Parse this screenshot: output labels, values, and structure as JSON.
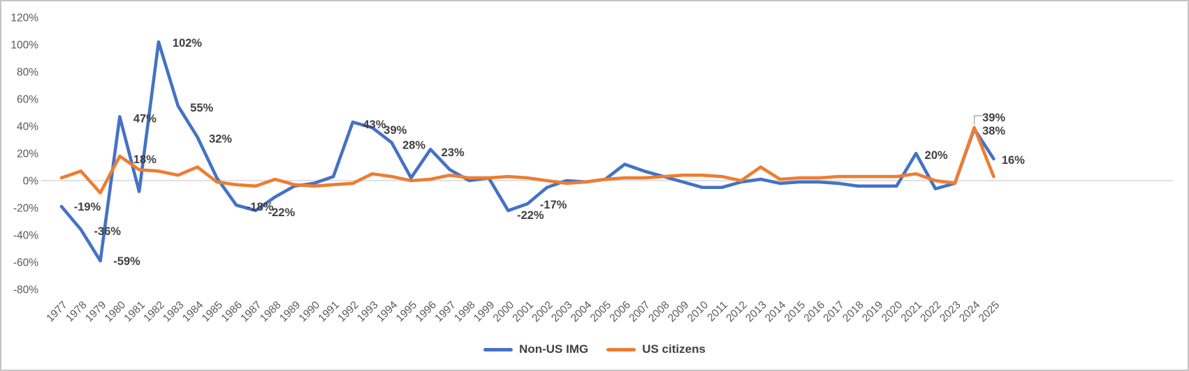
{
  "chart_data": {
    "type": "line",
    "title": "",
    "xlabel": "",
    "ylabel": "",
    "ylim": [
      -80,
      120
    ],
    "grid": "zero-line-only",
    "legend_position": "bottom-center",
    "x": [
      1977,
      1978,
      1979,
      1980,
      1981,
      1982,
      1983,
      1984,
      1985,
      1986,
      1987,
      1988,
      1989,
      1990,
      1991,
      1992,
      1993,
      1994,
      1995,
      1996,
      1997,
      1998,
      1999,
      2000,
      2001,
      2002,
      2003,
      2004,
      2005,
      2006,
      2007,
      2008,
      2009,
      2010,
      2011,
      2012,
      2013,
      2014,
      2015,
      2016,
      2017,
      2018,
      2019,
      2020,
      2021,
      2022,
      2023,
      2024,
      2025
    ],
    "y_ticks": [
      {
        "label": "120%",
        "value": 120
      },
      {
        "label": "100%",
        "value": 100
      },
      {
        "label": "80%",
        "value": 80
      },
      {
        "label": "60%",
        "value": 60
      },
      {
        "label": "40%",
        "value": 40
      },
      {
        "label": "20%",
        "value": 20
      },
      {
        "label": "0%",
        "value": 0
      },
      {
        "label": "-20%",
        "value": -20
      },
      {
        "label": "-40%",
        "value": -40
      },
      {
        "label": "-60%",
        "value": -60
      },
      {
        "label": "-80%",
        "value": -80
      }
    ],
    "series": [
      {
        "name": "Non-US IMG",
        "color": "#4472C4",
        "values": [
          -19,
          -36,
          -59,
          47,
          -8,
          102,
          55,
          32,
          2,
          -18,
          -22,
          -12,
          -4,
          -2,
          3,
          43,
          39,
          28,
          2,
          23,
          8,
          0,
          2,
          -22,
          -17,
          -5,
          0,
          -1,
          1,
          12,
          7,
          3,
          -1,
          -5,
          -5,
          -1,
          1,
          -2,
          -1,
          -1,
          -2,
          -4,
          -4,
          -4,
          20,
          -6,
          -2,
          38,
          16
        ],
        "point_labels": [
          {
            "year": 1977,
            "text": "-19%",
            "dx": 37,
            "dy": 0
          },
          {
            "year": 1978,
            "text": "-36%",
            "dx": 38,
            "dy": 2
          },
          {
            "year": 1979,
            "text": "-59%",
            "dx": 38,
            "dy": 0
          },
          {
            "year": 1980,
            "text": "47%",
            "dx": 36,
            "dy": 2
          },
          {
            "year": 1982,
            "text": "102%",
            "dx": 41,
            "dy": 1
          },
          {
            "year": 1983,
            "text": "55%",
            "dx": 34,
            "dy": 2
          },
          {
            "year": 1984,
            "text": "32%",
            "dx": 33,
            "dy": 2
          },
          {
            "year": 1986,
            "text": "-18%",
            "dx": 34,
            "dy": 2
          },
          {
            "year": 1987,
            "text": "-22%",
            "dx": 37,
            "dy": 2
          },
          {
            "year": 1992,
            "text": "43%",
            "dx": 31,
            "dy": 3
          },
          {
            "year": 1993,
            "text": "39%",
            "dx": 33,
            "dy": 3
          },
          {
            "year": 1994,
            "text": "28%",
            "dx": 32,
            "dy": 3
          },
          {
            "year": 1996,
            "text": "23%",
            "dx": 32,
            "dy": 4
          },
          {
            "year": 2000,
            "text": "-22%",
            "dx": 32,
            "dy": 6
          },
          {
            "year": 2001,
            "text": "-17%",
            "dx": 37,
            "dy": 1
          },
          {
            "year": 2021,
            "text": "20%",
            "dx": 29,
            "dy": 2
          },
          {
            "year": 2024,
            "text": "38%",
            "dx": 28,
            "dy": 2
          },
          {
            "year": 2025,
            "text": "16%",
            "dx": 28,
            "dy": 1
          }
        ]
      },
      {
        "name": "US citizens",
        "color": "#ED7D31",
        "values": [
          2,
          7,
          -9,
          18,
          8,
          7,
          4,
          10,
          -1,
          -3,
          -4,
          1,
          -3,
          -4,
          -3,
          -2,
          5,
          3,
          0,
          1,
          4,
          2,
          2,
          3,
          2,
          0,
          -2,
          -1,
          1,
          2,
          2,
          3,
          4,
          4,
          3,
          0,
          10,
          1,
          2,
          2,
          3,
          3,
          3,
          3,
          5,
          0,
          -2,
          39,
          3
        ],
        "point_labels": [
          {
            "year": 1980,
            "text": "18%",
            "dx": 36,
            "dy": 4
          },
          {
            "year": 2024,
            "text": "39%",
            "dx": 28,
            "dy": -15,
            "leader": true
          }
        ]
      }
    ],
    "layout": {
      "x_start": 86,
      "x_step": 27.8,
      "y_zero": 257,
      "y_per_unit": 1.95,
      "grid_x_start": 57,
      "grid_x_end": 1677,
      "x_label_y": 436
    }
  }
}
